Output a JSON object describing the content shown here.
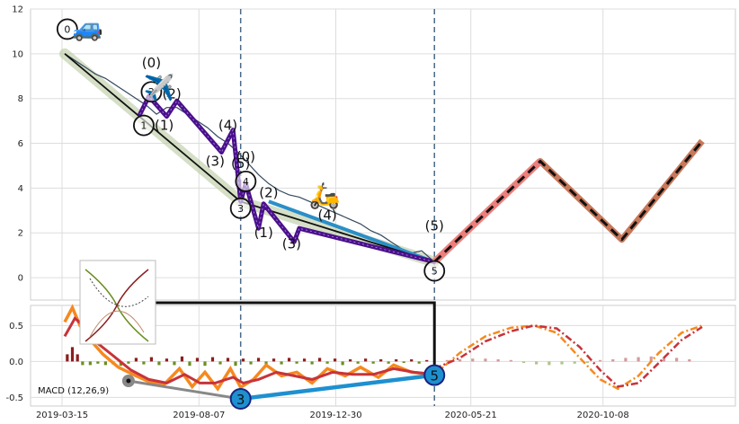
{
  "chart_data": [
    {
      "type": "line",
      "panel": "price",
      "ylim": [
        -1,
        12
      ],
      "yticks": [
        0,
        2,
        4,
        6,
        8,
        10,
        12
      ],
      "x_start": "2019-03-15",
      "x_end": "2020-12-26",
      "xticks": [
        "2019-03-15",
        "2019-08-07",
        "2019-12-30",
        "2020-05-21",
        "2020-10-08"
      ],
      "grid": true,
      "price": [
        [
          0,
          10.0
        ],
        [
          8,
          9.7
        ],
        [
          16,
          9.4
        ],
        [
          24,
          9.1
        ],
        [
          32,
          8.9
        ],
        [
          40,
          8.6
        ],
        [
          48,
          8.3
        ],
        [
          56,
          8.0
        ],
        [
          64,
          7.7
        ],
        [
          72,
          7.3
        ],
        [
          80,
          7.6
        ],
        [
          88,
          7.6
        ],
        [
          96,
          7.3
        ],
        [
          104,
          7.0
        ],
        [
          112,
          6.7
        ],
        [
          120,
          6.3
        ],
        [
          128,
          6.0
        ],
        [
          136,
          5.6
        ],
        [
          144,
          5.1
        ],
        [
          152,
          4.6
        ],
        [
          160,
          4.2
        ],
        [
          168,
          3.9
        ],
        [
          176,
          3.7
        ],
        [
          184,
          3.6
        ],
        [
          192,
          3.4
        ],
        [
          200,
          3.2
        ],
        [
          208,
          3.0
        ],
        [
          216,
          2.8
        ],
        [
          224,
          2.6
        ],
        [
          232,
          2.4
        ],
        [
          240,
          2.1
        ],
        [
          248,
          1.9
        ],
        [
          256,
          1.6
        ],
        [
          264,
          1.3
        ],
        [
          272,
          1.1
        ],
        [
          280,
          1.2
        ],
        [
          290,
          0.7
        ]
      ],
      "trend_band": [
        [
          0,
          10.0
        ],
        [
          138,
          3.4
        ],
        [
          290,
          0.7
        ]
      ],
      "trend_line": [
        [
          0,
          10.0
        ],
        [
          138,
          3.4
        ],
        [
          290,
          0.7
        ]
      ],
      "purple_wave": [
        [
          59,
          7.3
        ],
        [
          66,
          8.1
        ],
        [
          80,
          7.2
        ],
        [
          88,
          7.9
        ],
        [
          123,
          5.6
        ],
        [
          132,
          6.6
        ],
        [
          138,
          3.4
        ],
        [
          142,
          4.2
        ],
        [
          152,
          2.2
        ],
        [
          156,
          3.3
        ],
        [
          180,
          1.6
        ],
        [
          184,
          2.2
        ],
        [
          290,
          0.7
        ]
      ],
      "forecast": [
        [
          290,
          0.7
        ],
        [
          373,
          5.2
        ],
        [
          437,
          1.7
        ],
        [
          500,
          6.1
        ]
      ],
      "vlines": [
        138,
        290
      ],
      "circle_markers": [
        {
          "label": "0",
          "x": 2,
          "y": 11.1
        },
        {
          "label": "1",
          "x": 62,
          "y": 6.8
        },
        {
          "label": "2",
          "x": 68,
          "y": 8.3
        },
        {
          "label": "3",
          "x": 138,
          "y": 3.1
        },
        {
          "label": "4",
          "x": 142,
          "y": 4.3
        },
        {
          "label": "5",
          "x": 290,
          "y": 0.3
        }
      ],
      "wave_labels": [
        {
          "text": "(0)",
          "x": 68,
          "y": 9.4
        },
        {
          "text": "(1)",
          "x": 78,
          "y": 6.6
        },
        {
          "text": "(2)",
          "x": 84,
          "y": 8.0
        },
        {
          "text": "(3)",
          "x": 118,
          "y": 5.0
        },
        {
          "text": "(4)",
          "x": 128,
          "y": 6.6
        },
        {
          "text": "(5)",
          "x": 138,
          "y": 4.9
        },
        {
          "text": "(0)",
          "x": 142,
          "y": 5.2
        },
        {
          "text": "(2)",
          "x": 160,
          "y": 3.6
        },
        {
          "text": "(1)",
          "x": 156,
          "y": 1.8
        },
        {
          "text": "(3)",
          "x": 178,
          "y": 1.3
        },
        {
          "text": "(4)",
          "x": 206,
          "y": 2.6
        },
        {
          "text": "(5)",
          "x": 290,
          "y": 2.1
        }
      ],
      "emoji": [
        {
          "char": "🚙",
          "x": 18,
          "y": 10.8
        },
        {
          "char": "✈️",
          "x": 74,
          "y": 8.1
        },
        {
          "char": "🛵",
          "x": 204,
          "y": 3.3
        }
      ]
    },
    {
      "type": "line",
      "panel": "macd",
      "label": "MACD (12,26,9)",
      "ylim": [
        -0.62,
        0.78
      ],
      "yticks": [
        -0.5,
        0.0,
        0.5
      ],
      "macd": [
        [
          0,
          0.55
        ],
        [
          6,
          0.75
        ],
        [
          12,
          0.5
        ],
        [
          20,
          0.3
        ],
        [
          30,
          0.1
        ],
        [
          42,
          -0.08
        ],
        [
          56,
          -0.2
        ],
        [
          66,
          -0.28
        ],
        [
          78,
          -0.32
        ],
        [
          90,
          -0.1
        ],
        [
          100,
          -0.35
        ],
        [
          110,
          -0.15
        ],
        [
          120,
          -0.38
        ],
        [
          130,
          -0.1
        ],
        [
          138,
          -0.36
        ],
        [
          148,
          -0.25
        ],
        [
          158,
          -0.05
        ],
        [
          170,
          -0.2
        ],
        [
          182,
          -0.15
        ],
        [
          194,
          -0.3
        ],
        [
          206,
          -0.1
        ],
        [
          220,
          -0.2
        ],
        [
          232,
          -0.08
        ],
        [
          246,
          -0.22
        ],
        [
          258,
          -0.05
        ],
        [
          272,
          -0.15
        ],
        [
          290,
          -0.18
        ]
      ],
      "signal": [
        [
          0,
          0.35
        ],
        [
          8,
          0.6
        ],
        [
          16,
          0.48
        ],
        [
          26,
          0.25
        ],
        [
          38,
          0.08
        ],
        [
          52,
          -0.12
        ],
        [
          66,
          -0.25
        ],
        [
          80,
          -0.3
        ],
        [
          94,
          -0.18
        ],
        [
          106,
          -0.3
        ],
        [
          118,
          -0.3
        ],
        [
          132,
          -0.22
        ],
        [
          140,
          -0.3
        ],
        [
          152,
          -0.25
        ],
        [
          166,
          -0.15
        ],
        [
          180,
          -0.2
        ],
        [
          194,
          -0.25
        ],
        [
          210,
          -0.15
        ],
        [
          226,
          -0.18
        ],
        [
          242,
          -0.18
        ],
        [
          258,
          -0.1
        ],
        [
          274,
          -0.15
        ],
        [
          290,
          -0.18
        ]
      ],
      "forecast_macd": [
        [
          290,
          -0.18
        ],
        [
          310,
          0.12
        ],
        [
          330,
          0.35
        ],
        [
          350,
          0.47
        ],
        [
          368,
          0.5
        ],
        [
          386,
          0.4
        ],
        [
          404,
          0.05
        ],
        [
          420,
          -0.25
        ],
        [
          434,
          -0.38
        ],
        [
          450,
          -0.2
        ],
        [
          466,
          0.12
        ],
        [
          484,
          0.4
        ],
        [
          500,
          0.5
        ]
      ],
      "forecast_signal": [
        [
          290,
          -0.1
        ],
        [
          310,
          0.05
        ],
        [
          330,
          0.28
        ],
        [
          350,
          0.42
        ],
        [
          368,
          0.5
        ],
        [
          386,
          0.46
        ],
        [
          404,
          0.2
        ],
        [
          420,
          -0.12
        ],
        [
          434,
          -0.35
        ],
        [
          450,
          -0.3
        ],
        [
          466,
          -0.02
        ],
        [
          484,
          0.3
        ],
        [
          500,
          0.48
        ]
      ],
      "histogram_bars": [
        [
          2,
          0.1
        ],
        [
          6,
          0.2
        ],
        [
          10,
          0.1
        ],
        [
          14,
          -0.05
        ],
        [
          20,
          -0.05
        ],
        [
          26,
          -0.03
        ],
        [
          32,
          -0.05
        ],
        [
          38,
          -0.04
        ],
        [
          44,
          -0.06
        ],
        [
          50,
          -0.03
        ],
        [
          56,
          0.05
        ],
        [
          62,
          -0.04
        ],
        [
          68,
          0.06
        ],
        [
          74,
          -0.05
        ],
        [
          80,
          0.04
        ],
        [
          86,
          -0.05
        ],
        [
          92,
          0.07
        ],
        [
          98,
          -0.06
        ],
        [
          104,
          0.05
        ],
        [
          110,
          -0.06
        ],
        [
          116,
          0.06
        ],
        [
          122,
          -0.04
        ],
        [
          128,
          0.05
        ],
        [
          134,
          -0.06
        ],
        [
          140,
          0.04
        ],
        [
          146,
          -0.04
        ],
        [
          152,
          0.05
        ],
        [
          158,
          -0.05
        ],
        [
          164,
          0.04
        ],
        [
          170,
          -0.04
        ],
        [
          176,
          0.05
        ],
        [
          182,
          -0.03
        ],
        [
          188,
          0.04
        ],
        [
          194,
          -0.04
        ],
        [
          200,
          0.05
        ],
        [
          206,
          -0.03
        ],
        [
          212,
          0.04
        ],
        [
          218,
          -0.05
        ],
        [
          224,
          0.03
        ],
        [
          230,
          -0.03
        ],
        [
          236,
          0.04
        ],
        [
          242,
          -0.03
        ],
        [
          248,
          0.03
        ],
        [
          254,
          -0.03
        ],
        [
          260,
          0.03
        ],
        [
          266,
          -0.02
        ],
        [
          272,
          0.03
        ],
        [
          278,
          -0.03
        ],
        [
          284,
          0.02
        ],
        [
          300,
          0.02
        ],
        [
          310,
          0.03
        ],
        [
          320,
          0.04
        ],
        [
          330,
          0.04
        ],
        [
          340,
          0.03
        ],
        [
          350,
          0.02
        ],
        [
          360,
          -0.02
        ],
        [
          370,
          -0.04
        ],
        [
          380,
          -0.05
        ],
        [
          390,
          -0.04
        ],
        [
          400,
          -0.03
        ],
        [
          410,
          -0.02
        ],
        [
          420,
          0.02
        ],
        [
          430,
          0.03
        ],
        [
          440,
          0.05
        ],
        [
          450,
          0.06
        ],
        [
          460,
          0.07
        ],
        [
          470,
          0.06
        ],
        [
          480,
          0.05
        ],
        [
          490,
          0.03
        ]
      ],
      "markers": [
        {
          "label": "3",
          "x": 138,
          "y": -0.52
        },
        {
          "label": "5",
          "x": 290,
          "y": -0.19
        }
      ],
      "grey_marker": {
        "x": 50,
        "y": -0.27
      },
      "grey_line": [
        [
          50,
          -0.27
        ],
        [
          138,
          -0.52
        ]
      ],
      "blue_line": [
        [
          138,
          -0.52
        ],
        [
          290,
          -0.19
        ]
      ],
      "connector": [
        [
          62,
          0.78
        ],
        [
          290,
          0.78
        ],
        [
          290,
          -0.19
        ]
      ]
    }
  ]
}
